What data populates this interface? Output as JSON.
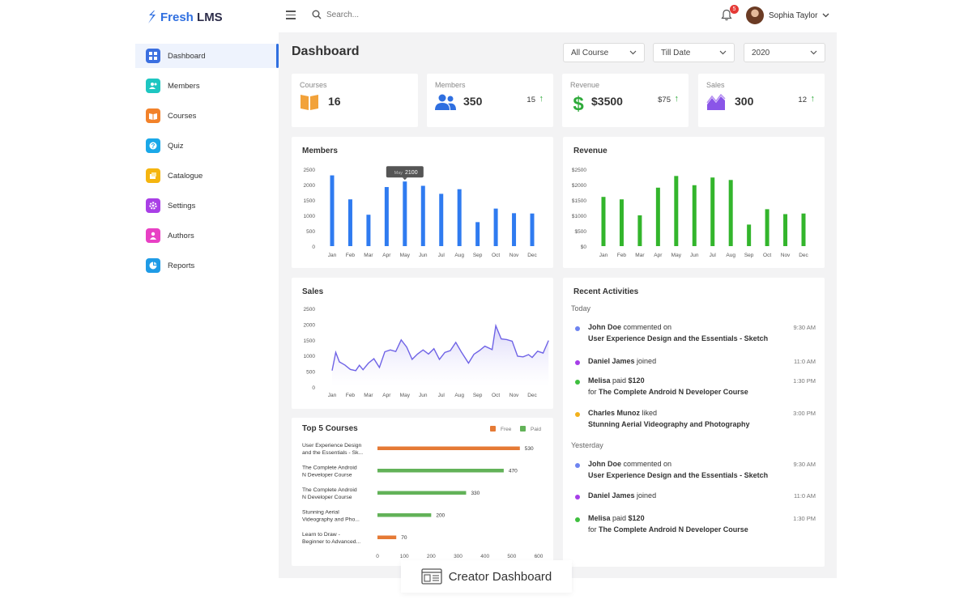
{
  "app": {
    "brand_prefix": "Fresh",
    "brand_suffix": " LMS"
  },
  "header": {
    "search_placeholder": "Search...",
    "notification_count": "5",
    "user_name": "Sophia Taylor"
  },
  "sidebar": {
    "items": [
      {
        "label": "Dashboard",
        "icon": "dashboard-icon",
        "color": "#3b6fe0"
      },
      {
        "label": "Members",
        "icon": "members-icon",
        "color": "#1ec6c1"
      },
      {
        "label": "Courses",
        "icon": "courses-icon",
        "color": "#f2822a"
      },
      {
        "label": "Quiz",
        "icon": "quiz-icon",
        "color": "#1aa8e8"
      },
      {
        "label": "Catalogue",
        "icon": "catalogue-icon",
        "color": "#f5b50f"
      },
      {
        "label": "Settings",
        "icon": "settings-icon",
        "color": "#a93fe6"
      },
      {
        "label": "Authors",
        "icon": "authors-icon",
        "color": "#e840c4"
      },
      {
        "label": "Reports",
        "icon": "reports-icon",
        "color": "#1f9be6"
      }
    ]
  },
  "page": {
    "title": "Dashboard",
    "filters": [
      "All Course",
      "Till Date",
      "2020"
    ]
  },
  "stats": [
    {
      "label": "Courses",
      "value": "16",
      "delta": "",
      "icon": "book-icon",
      "color": "#f2a23a"
    },
    {
      "label": "Members",
      "value": "350",
      "delta": "15",
      "icon": "users-icon",
      "color": "#2f6fe0"
    },
    {
      "label": "Revenue",
      "value": "$3500",
      "delta": "$75",
      "icon": "dollar-icon",
      "color": "#2eaa3a"
    },
    {
      "label": "Sales",
      "value": "300",
      "delta": "12",
      "icon": "area-chart-icon",
      "color": "#8a55e8"
    }
  ],
  "chart_data": [
    {
      "type": "bar",
      "title": "Members",
      "categories": [
        "Jan",
        "Feb",
        "Mar",
        "Apr",
        "May",
        "Jun",
        "Jul",
        "Aug",
        "Sep",
        "Oct",
        "Nov",
        "Dec"
      ],
      "values": [
        2300,
        1520,
        1020,
        1920,
        2100,
        1960,
        1700,
        1850,
        780,
        1220,
        1070,
        1060
      ],
      "ylim": [
        0,
        2500
      ],
      "yticks": [
        "2500",
        "2000",
        "1500",
        "1000",
        "500",
        "0"
      ],
      "color": "#2f7bf0",
      "tooltip": {
        "label": "May",
        "value": "2100"
      }
    },
    {
      "type": "bar",
      "title": "Revenue",
      "categories": [
        "Jan",
        "Feb",
        "Mar",
        "Apr",
        "May",
        "Jun",
        "Jul",
        "Aug",
        "Sep",
        "Oct",
        "Nov",
        "Dec"
      ],
      "values": [
        1600,
        1520,
        1000,
        1900,
        2280,
        1980,
        2230,
        2150,
        700,
        1200,
        1040,
        1060
      ],
      "ylim": [
        0,
        2500
      ],
      "yticks": [
        "$2500",
        "$2000",
        "$1500",
        "$1000",
        "$500",
        "$0"
      ],
      "color": "#33b52c"
    },
    {
      "type": "area",
      "title": "Sales",
      "categories": [
        "Jan",
        "Feb",
        "Mar",
        "Apr",
        "May",
        "Jun",
        "Jul",
        "Aug",
        "Sep",
        "Oct",
        "Nov",
        "Dec"
      ],
      "x": [
        0,
        0.2,
        0.4,
        0.7,
        1.0,
        1.3,
        1.5,
        1.7,
        2.0,
        2.3,
        2.6,
        2.9,
        3.2,
        3.5,
        3.8,
        4.1,
        4.4,
        4.7,
        5.0,
        5.3,
        5.6,
        5.9,
        6.2,
        6.5,
        6.8,
        7.1,
        7.5,
        7.8,
        8.1,
        8.4,
        8.8,
        9.0,
        9.3,
        9.6,
        9.9,
        10.2,
        10.5,
        10.8,
        11.0,
        11.3,
        11.6,
        11.9
      ],
      "values": [
        520,
        1100,
        800,
        700,
        560,
        520,
        690,
        550,
        760,
        900,
        620,
        1120,
        1180,
        1130,
        1500,
        1270,
        880,
        1050,
        1180,
        1050,
        1220,
        880,
        1100,
        1160,
        1420,
        1120,
        760,
        1040,
        1160,
        1300,
        1190,
        1950,
        1530,
        1510,
        1460,
        980,
        960,
        1030,
        940,
        1140,
        1080,
        1480
      ],
      "ylim": [
        0,
        2500
      ],
      "yticks": [
        "2500",
        "2000",
        "1500",
        "1000",
        "500",
        "0"
      ],
      "color": "#6f63e6"
    },
    {
      "type": "bar",
      "title": "Top 5 Courses",
      "orientation": "horizontal",
      "categories": [
        [
          "User Experience Design",
          "and the Essentials - Sk..."
        ],
        [
          "The Complete Android",
          "N Developer Course"
        ],
        [
          "The Complete Android",
          "N Developer Course"
        ],
        [
          "Stunning Aerial",
          "Videography and Pho..."
        ],
        [
          "Learn to Draw -",
          "Beginner to Advanced..."
        ]
      ],
      "values": [
        530,
        470,
        330,
        200,
        70
      ],
      "value_labels": [
        "530",
        "470",
        "330",
        "200",
        "70"
      ],
      "kinds": [
        "Free",
        "Paid",
        "Paid",
        "Paid",
        "Free"
      ],
      "legend": [
        "Free",
        "Paid"
      ],
      "colors": {
        "Free": "#e57a35",
        "Paid": "#62b258"
      },
      "xlim": [
        0,
        600
      ],
      "xticks": [
        "0",
        "100",
        "200",
        "300",
        "400",
        "500",
        "600"
      ]
    }
  ],
  "activities": {
    "title": "Recent Activities",
    "groups": [
      {
        "label": "Today",
        "items": [
          {
            "who": "John Doe",
            "action": " commented on",
            "detail_prefix": "",
            "detail": "User Experience Design and the Essentials - Sketch",
            "time": "9:30 AM",
            "color": "#6e84f0"
          },
          {
            "who": "Daniel James",
            "action": " joined",
            "detail_prefix": "",
            "detail": "",
            "time": "11:0 AM",
            "color": "#a63ee8"
          },
          {
            "who": "Melisa",
            "action": " paid ",
            "amount": "$120",
            "detail_prefix": "for ",
            "detail": "The Complete Android N Developer Course",
            "time": "1:30 PM",
            "color": "#3fbf3f"
          },
          {
            "who": "Charles Munoz",
            "action": " liked",
            "detail_prefix": "",
            "detail": "Stunning Aerial Videography and Photography",
            "time": "3:00 PM",
            "color": "#f2b11c"
          }
        ]
      },
      {
        "label": "Yesterday",
        "items": [
          {
            "who": "John Doe",
            "action": " commented on",
            "detail_prefix": "",
            "detail": "User Experience Design and the Essentials - Sketch",
            "time": "9:30 AM",
            "color": "#6e84f0"
          },
          {
            "who": "Daniel James",
            "action": " joined",
            "detail_prefix": "",
            "detail": "",
            "time": "11:0 AM",
            "color": "#a63ee8"
          },
          {
            "who": "Melisa",
            "action": " paid ",
            "amount": "$120",
            "detail_prefix": "for ",
            "detail": "The Complete Android N Developer Course",
            "time": "1:30 PM",
            "color": "#3fbf3f"
          }
        ]
      }
    ]
  },
  "footer": {
    "label": "Creator Dashboard",
    "icon": "dashboard-layout-icon"
  }
}
